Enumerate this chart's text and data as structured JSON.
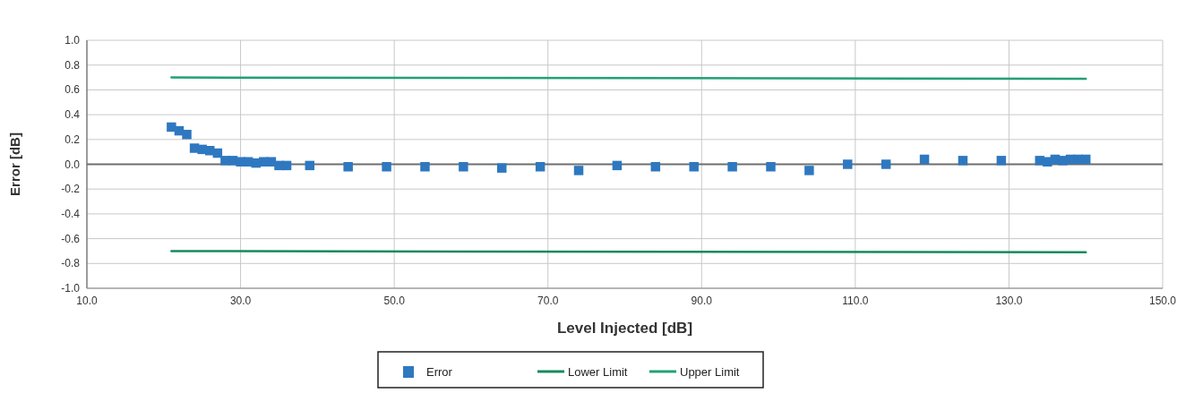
{
  "chart_data": {
    "type": "scatter",
    "xlabel": "Level Injected [dB]",
    "ylabel": "Error [dB]",
    "xlim": [
      10,
      150
    ],
    "xticks": [
      {
        "value": 10,
        "label": "10.0"
      },
      {
        "value": 30,
        "label": "30.0"
      },
      {
        "value": 50,
        "label": "50.0"
      },
      {
        "value": 70,
        "label": "70.0"
      },
      {
        "value": 90,
        "label": "90.0"
      },
      {
        "value": 110,
        "label": "110.0"
      },
      {
        "value": 130,
        "label": "130.0"
      },
      {
        "value": 150,
        "label": "150.0"
      }
    ],
    "ylim": [
      -1,
      1
    ],
    "yticks": [
      {
        "value": -1,
        "label": "-1.0"
      },
      {
        "value": -0.8,
        "label": "-0.8"
      },
      {
        "value": -0.6,
        "label": "-0.6"
      },
      {
        "value": -0.4,
        "label": "-0.4"
      },
      {
        "value": -0.2,
        "label": "-0.2"
      },
      {
        "value": 0,
        "label": "0.0"
      },
      {
        "value": 0.2,
        "label": "0.2"
      },
      {
        "value": 0.4,
        "label": "0.4"
      },
      {
        "value": 0.6,
        "label": "0.6"
      },
      {
        "value": 0.8,
        "label": "0.8"
      },
      {
        "value": 1,
        "label": "1.0"
      }
    ],
    "grid": true,
    "legend": "bottom",
    "ref_lines": [
      {
        "axis": "y",
        "value": 0,
        "color": "#6e6e6e"
      }
    ],
    "series": [
      {
        "name": "Error",
        "marker": "square",
        "color": "#2e78c0",
        "x": [
          21,
          22,
          23,
          24,
          25,
          26,
          27,
          28,
          29,
          30,
          31,
          32,
          33,
          34,
          35,
          36,
          39,
          44,
          49,
          54,
          59,
          64,
          69,
          74,
          79,
          84,
          89,
          94,
          99,
          104,
          109,
          114,
          119,
          124,
          129,
          134,
          135,
          136,
          137,
          138,
          139,
          140
        ],
        "values": [
          0.3,
          0.27,
          0.24,
          0.13,
          0.12,
          0.11,
          0.09,
          0.03,
          0.03,
          0.02,
          0.02,
          0.01,
          0.02,
          0.02,
          -0.01,
          -0.01,
          -0.01,
          -0.02,
          -0.02,
          -0.02,
          -0.02,
          -0.03,
          -0.02,
          -0.05,
          -0.01,
          -0.02,
          -0.02,
          -0.02,
          -0.02,
          -0.05,
          0,
          0,
          0.04,
          0.03,
          0.03,
          0.03,
          0.02,
          0.04,
          0.03,
          0.04,
          0.04,
          0.04
        ]
      },
      {
        "name": "Lower Limit",
        "type": "line",
        "marker": "none",
        "color": "#178a5c",
        "x": [
          21,
          140
        ],
        "values": [
          -0.7,
          -0.71
        ]
      },
      {
        "name": "Upper Limit",
        "type": "line",
        "marker": "none",
        "color": "#22a076",
        "x": [
          21,
          140
        ],
        "values": [
          0.7,
          0.69
        ]
      }
    ]
  }
}
